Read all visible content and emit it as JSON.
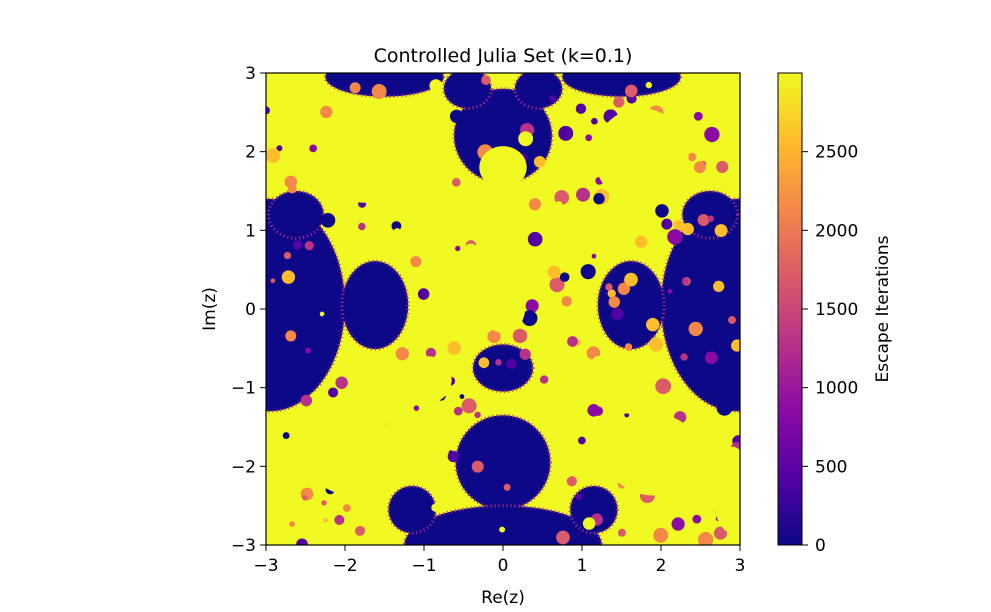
{
  "chart_data": {
    "type": "heatmap",
    "title": "Controlled Julia Set (k=0.1)",
    "xlabel": "Re(z)",
    "ylabel": "Im(z)",
    "xlim": [
      -3,
      3
    ],
    "ylim": [
      -3,
      3
    ],
    "x_ticks": [
      -3,
      -2,
      -1,
      0,
      1,
      2,
      3
    ],
    "y_ticks": [
      -3,
      -2,
      -1,
      0,
      1,
      2,
      3
    ],
    "x_tick_labels": [
      "−3",
      "−2",
      "−1",
      "0",
      "1",
      "2",
      "3"
    ],
    "y_tick_labels": [
      "−3",
      "−2",
      "−1",
      "0",
      "1",
      "2",
      "3"
    ],
    "colorbar": {
      "label": "Escape Iterations",
      "min": 0,
      "max": 3000,
      "ticks": [
        0,
        500,
        1000,
        1500,
        2000,
        2500
      ],
      "tick_labels": [
        "0",
        "500",
        "1000",
        "1500",
        "2000",
        "2500"
      ],
      "colormap": "plasma"
    },
    "colors": {
      "low": "#0d0887",
      "high": "#f0f921",
      "plasma": [
        "#0d0887",
        "#5302a3",
        "#8b0aa5",
        "#b83289",
        "#db5c68",
        "#f48849",
        "#febd2a",
        "#f0f921"
      ]
    },
    "regions": {
      "large_dark_blobs": [
        {
          "cx": -2.95,
          "cy": 0.05,
          "rx": 0.95,
          "ry": 1.35
        },
        {
          "cx": 2.95,
          "cy": 0.05,
          "rx": 0.95,
          "ry": 1.35
        },
        {
          "cx": -1.62,
          "cy": 0.05,
          "rx": 0.42,
          "ry": 0.56
        },
        {
          "cx": 1.62,
          "cy": 0.05,
          "rx": 0.42,
          "ry": 0.56
        },
        {
          "cx": 0.0,
          "cy": -1.95,
          "rx": 0.6,
          "ry": 0.6
        },
        {
          "cx": 0.0,
          "cy": -3.0,
          "rx": 1.25,
          "ry": 0.5
        },
        {
          "cx": 0.0,
          "cy": 2.2,
          "rx": 0.62,
          "ry": 0.6
        },
        {
          "cx": 0.0,
          "cy": -0.75,
          "rx": 0.38,
          "ry": 0.3
        },
        {
          "cx": -1.5,
          "cy": 2.95,
          "rx": 0.75,
          "ry": 0.25
        },
        {
          "cx": 1.5,
          "cy": 2.95,
          "rx": 0.75,
          "ry": 0.25
        },
        {
          "cx": -0.45,
          "cy": 2.8,
          "rx": 0.3,
          "ry": 0.25
        },
        {
          "cx": 0.45,
          "cy": 2.8,
          "rx": 0.3,
          "ry": 0.25
        },
        {
          "cx": -2.62,
          "cy": 1.2,
          "rx": 0.35,
          "ry": 0.3
        },
        {
          "cx": 2.62,
          "cy": 1.2,
          "rx": 0.35,
          "ry": 0.3
        },
        {
          "cx": -1.15,
          "cy": -2.55,
          "rx": 0.3,
          "ry": 0.3
        },
        {
          "cx": 1.15,
          "cy": -2.55,
          "rx": 0.3,
          "ry": 0.3
        }
      ],
      "large_bright_blobs": [
        {
          "cx": -1.75,
          "cy": 1.95,
          "rx": 0.6,
          "ry": 0.6
        },
        {
          "cx": 1.75,
          "cy": 1.95,
          "rx": 0.6,
          "ry": 0.6
        },
        {
          "cx": -1.9,
          "cy": -1.85,
          "rx": 0.6,
          "ry": 0.52
        },
        {
          "cx": 1.9,
          "cy": -1.85,
          "rx": 0.6,
          "ry": 0.52
        },
        {
          "cx": -1.6,
          "cy": -1.05,
          "rx": 0.32,
          "ry": 0.28
        },
        {
          "cx": 1.6,
          "cy": -1.05,
          "rx": 0.32,
          "ry": 0.28
        },
        {
          "cx": 0.0,
          "cy": 1.8,
          "rx": 0.3,
          "ry": 0.27
        },
        {
          "cx": 0.0,
          "cy": 0.0,
          "rx": 0.28,
          "ry": 0.3
        },
        {
          "cx": 0.0,
          "cy": 0.35,
          "rx": 0.18,
          "ry": 0.15
        },
        {
          "cx": -0.95,
          "cy": 0.95,
          "rx": 0.3,
          "ry": 0.3
        },
        {
          "cx": 0.95,
          "cy": 0.95,
          "rx": 0.3,
          "ry": 0.3
        },
        {
          "cx": -0.95,
          "cy": -0.9,
          "rx": 0.3,
          "ry": 0.3
        },
        {
          "cx": 0.95,
          "cy": -0.9,
          "rx": 0.3,
          "ry": 0.3
        },
        {
          "cx": 0.0,
          "cy": 0.85,
          "rx": 0.14,
          "ry": 0.12
        },
        {
          "cx": -2.9,
          "cy": -2.3,
          "rx": 0.25,
          "ry": 0.55
        },
        {
          "cx": 2.9,
          "cy": -2.3,
          "rx": 0.25,
          "ry": 0.55
        }
      ]
    }
  }
}
